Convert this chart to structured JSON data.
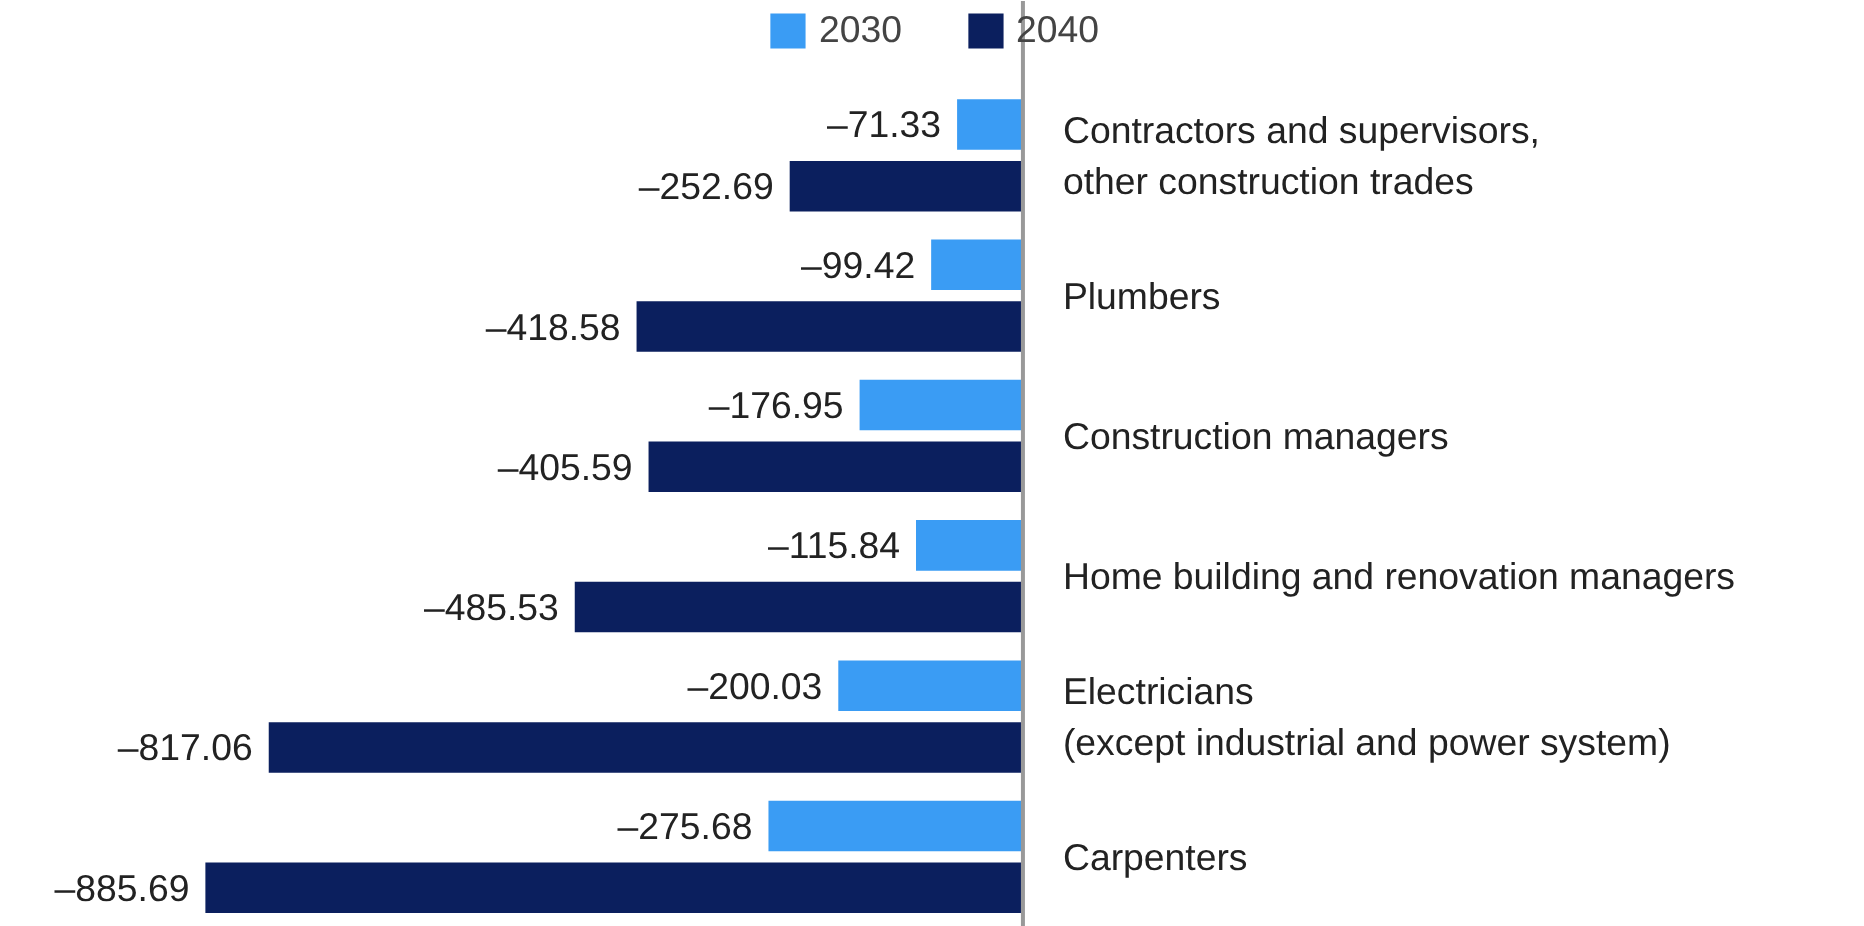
{
  "chart_data": {
    "type": "bar",
    "orientation": "horizontal",
    "categories": [
      "Contractors and supervisors,\nother construction trades",
      "Plumbers",
      "Construction managers",
      "Home building and renovation managers",
      "Electricians\n(except industrial and power system)",
      "Carpenters"
    ],
    "series": [
      {
        "name": "2030",
        "color": "#3a9cf4",
        "values": [
          -71.33,
          -99.42,
          -176.95,
          -115.84,
          -200.03,
          -275.68
        ],
        "value_labels": [
          "–71.33",
          "–99.42",
          "–176.95",
          "–115.84",
          "–200.03",
          "–275.68"
        ]
      },
      {
        "name": "2040",
        "color": "#0b1f5e",
        "values": [
          -252.69,
          -418.58,
          -405.59,
          -485.53,
          -817.06,
          -885.69
        ],
        "value_labels": [
          "–252.69",
          "–418.58",
          "–405.59",
          "–485.53",
          "–817.06",
          "–885.69"
        ]
      }
    ],
    "legend": "top",
    "tick_labels": "y"
  }
}
